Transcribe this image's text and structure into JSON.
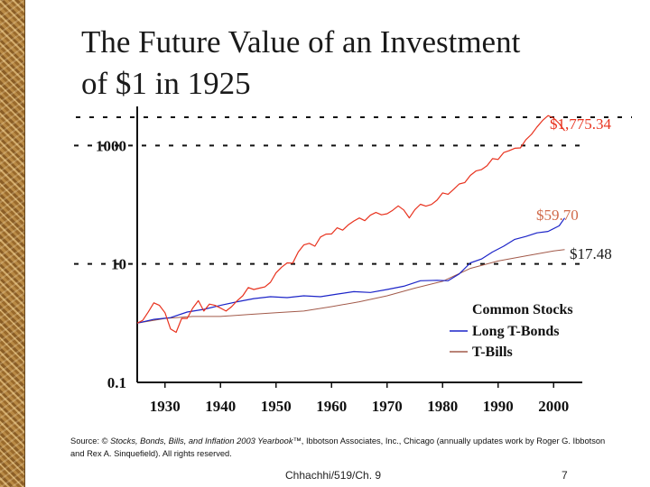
{
  "slide": {
    "title_line1": "The Future Value of an Investment",
    "title_line2": "of $1 in 1925",
    "source_prefix": "Source: © ",
    "source_italic": "Stocks, Bonds, Bills, and Inflation 2003 Yearbook™",
    "source_suffix": ", Ibbotson Associates, Inc., Chicago (annually updates work by Roger G. Ibbotson and Rex A. Sinquefield). All rights reserved.",
    "footer": "Chhachhi/519/Ch. 9",
    "page_number": "7"
  },
  "colors": {
    "stocks": "#e8321e",
    "bonds": "#1c24c8",
    "bills": "#a25a4a",
    "axis": "#111111"
  },
  "chart_data": {
    "type": "line",
    "title": "The Future Value of an Investment of $1 in 1925",
    "xlabel": "",
    "ylabel": "",
    "y_scale": "log",
    "ylim": [
      0.1,
      3000
    ],
    "xlim": [
      1925,
      2003
    ],
    "y_ticks": [
      {
        "value": 0.1,
        "label": "0.1"
      },
      {
        "value": 10,
        "label": "10"
      },
      {
        "value": 1000,
        "label": "1000"
      }
    ],
    "x_ticks": [
      {
        "value": 1930,
        "label": "1930"
      },
      {
        "value": 1940,
        "label": "1940"
      },
      {
        "value": 1950,
        "label": "1950"
      },
      {
        "value": 1960,
        "label": "1960"
      },
      {
        "value": 1970,
        "label": "1970"
      },
      {
        "value": 1980,
        "label": "1980"
      },
      {
        "value": 1990,
        "label": "1990"
      },
      {
        "value": 2000,
        "label": "2000"
      }
    ],
    "legend": {
      "position": "bottom-right",
      "entries": [
        "Common Stocks",
        "Long T-Bonds",
        "T-Bills"
      ]
    },
    "series": [
      {
        "name": "Common Stocks",
        "end_label": "$1,775.34",
        "points": [
          [
            1925,
            1
          ],
          [
            1926,
            1.12
          ],
          [
            1927,
            1.55
          ],
          [
            1928,
            2.2
          ],
          [
            1929,
            2.0
          ],
          [
            1930,
            1.5
          ],
          [
            1931,
            0.8
          ],
          [
            1932,
            0.7
          ],
          [
            1933,
            1.2
          ],
          [
            1934,
            1.2
          ],
          [
            1935,
            1.8
          ],
          [
            1936,
            2.4
          ],
          [
            1937,
            1.6
          ],
          [
            1938,
            2.1
          ],
          [
            1939,
            2.0
          ],
          [
            1940,
            1.8
          ],
          [
            1941,
            1.6
          ],
          [
            1942,
            1.9
          ],
          [
            1943,
            2.4
          ],
          [
            1944,
            2.9
          ],
          [
            1945,
            4.0
          ],
          [
            1946,
            3.7
          ],
          [
            1947,
            3.9
          ],
          [
            1948,
            4.1
          ],
          [
            1949,
            4.9
          ],
          [
            1950,
            7.1
          ],
          [
            1951,
            8.8
          ],
          [
            1952,
            10.4
          ],
          [
            1953,
            10.3
          ],
          [
            1954,
            15.9
          ],
          [
            1955,
            20.9
          ],
          [
            1956,
            22.3
          ],
          [
            1957,
            19.9
          ],
          [
            1958,
            28.5
          ],
          [
            1959,
            31.9
          ],
          [
            1960,
            32.1
          ],
          [
            1961,
            40.7
          ],
          [
            1962,
            37.2
          ],
          [
            1963,
            45.6
          ],
          [
            1964,
            53.1
          ],
          [
            1965,
            59.7
          ],
          [
            1966,
            53.7
          ],
          [
            1967,
            66.6
          ],
          [
            1968,
            73.9
          ],
          [
            1969,
            67.6
          ],
          [
            1970,
            70.4
          ],
          [
            1971,
            80.4
          ],
          [
            1972,
            95.6
          ],
          [
            1973,
            81.6
          ],
          [
            1974,
            60.0
          ],
          [
            1975,
            82.3
          ],
          [
            1976,
            101.8
          ],
          [
            1977,
            94.6
          ],
          [
            1978,
            100.9
          ],
          [
            1979,
            119.5
          ],
          [
            1980,
            158.2
          ],
          [
            1981,
            150.4
          ],
          [
            1982,
            182.6
          ],
          [
            1983,
            223.7
          ],
          [
            1984,
            237.3
          ],
          [
            1985,
            313.0
          ],
          [
            1986,
            371.3
          ],
          [
            1987,
            391.0
          ],
          [
            1988,
            456.0
          ],
          [
            1989,
            600.3
          ],
          [
            1990,
            581.5
          ],
          [
            1991,
            758.5
          ],
          [
            1992,
            816.7
          ],
          [
            1993,
            899.0
          ],
          [
            1994,
            911.0
          ],
          [
            1995,
            1253.0
          ],
          [
            1996,
            1541.0
          ],
          [
            1997,
            2055.0
          ],
          [
            1998,
            2643.0
          ],
          [
            1999,
            3200.0
          ],
          [
            2000,
            2900.0
          ],
          [
            2001,
            2350.0
          ],
          [
            2002,
            1775.34
          ]
        ]
      },
      {
        "name": "Long T-Bonds",
        "end_label": "$59.70",
        "points": [
          [
            1925,
            1
          ],
          [
            1928,
            1.16
          ],
          [
            1931,
            1.24
          ],
          [
            1934,
            1.54
          ],
          [
            1937,
            1.71
          ],
          [
            1940,
            2.0
          ],
          [
            1943,
            2.3
          ],
          [
            1946,
            2.6
          ],
          [
            1949,
            2.8
          ],
          [
            1952,
            2.7
          ],
          [
            1955,
            2.9
          ],
          [
            1958,
            2.8
          ],
          [
            1961,
            3.1
          ],
          [
            1964,
            3.4
          ],
          [
            1967,
            3.3
          ],
          [
            1970,
            3.7
          ],
          [
            1973,
            4.2
          ],
          [
            1976,
            5.2
          ],
          [
            1979,
            5.3
          ],
          [
            1981,
            5.2
          ],
          [
            1983,
            6.8
          ],
          [
            1985,
            10.4
          ],
          [
            1987,
            12.1
          ],
          [
            1989,
            15.9
          ],
          [
            1991,
            19.9
          ],
          [
            1993,
            26.0
          ],
          [
            1995,
            29.1
          ],
          [
            1997,
            33.5
          ],
          [
            1999,
            35.4
          ],
          [
            2001,
            44.0
          ],
          [
            2002,
            59.7
          ]
        ]
      },
      {
        "name": "T-Bills",
        "end_label": "$17.48",
        "points": [
          [
            1925,
            1
          ],
          [
            1930,
            1.2
          ],
          [
            1935,
            1.3
          ],
          [
            1940,
            1.3
          ],
          [
            1945,
            1.4
          ],
          [
            1950,
            1.5
          ],
          [
            1955,
            1.6
          ],
          [
            1960,
            1.9
          ],
          [
            1965,
            2.3
          ],
          [
            1970,
            2.9
          ],
          [
            1975,
            3.9
          ],
          [
            1980,
            5.1
          ],
          [
            1985,
            8.4
          ],
          [
            1990,
            11.2
          ],
          [
            1995,
            13.7
          ],
          [
            2000,
            16.6
          ],
          [
            2002,
            17.48
          ]
        ]
      }
    ]
  }
}
